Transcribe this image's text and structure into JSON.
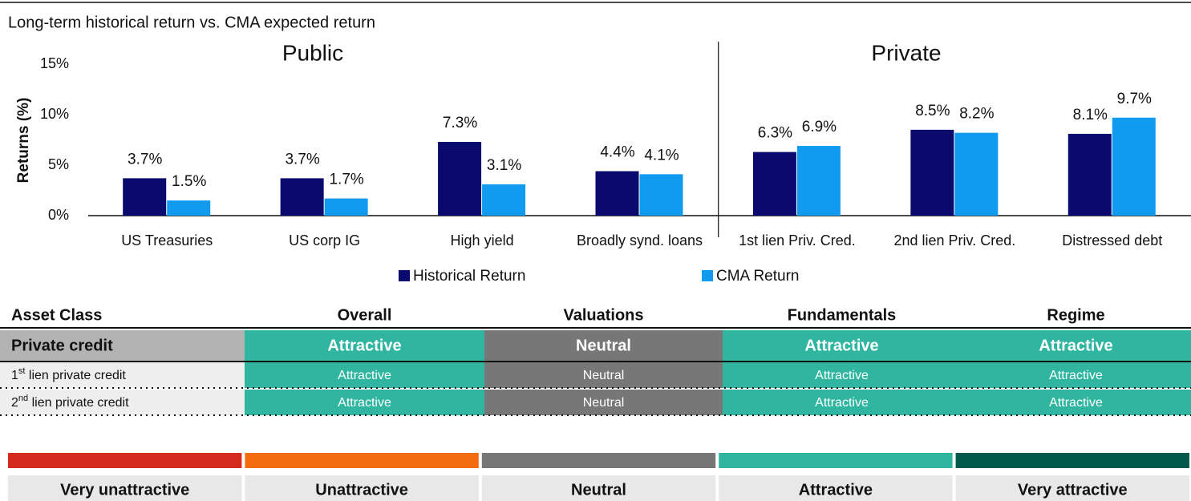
{
  "chart_data": {
    "type": "bar",
    "title": "Long-term historical return vs. CMA expected return",
    "annotations": [
      "Public",
      "Private"
    ],
    "y_label": "Returns (%)",
    "categories": [
      "US Treasuries",
      "US corp IG",
      "High yield",
      "Broadly synd. loans",
      "1st lien Priv. Cred.",
      "2nd lien Priv. Cred.",
      "Distressed debt"
    ],
    "series": [
      {
        "name": "Historical Return",
        "color": "#0a0a6e",
        "values": [
          3.7,
          3.7,
          7.3,
          4.4,
          6.3,
          8.5,
          8.1
        ],
        "value_labels": [
          "3.7%",
          "3.7%",
          "7.3%",
          "4.4%",
          "6.3%",
          "8.5%",
          "8.1%"
        ]
      },
      {
        "name": "CMA Return",
        "color": "#119bf0",
        "values": [
          1.5,
          1.7,
          3.1,
          4.1,
          6.9,
          8.2,
          9.7
        ],
        "value_labels": [
          "1.5%",
          "1.7%",
          "3.1%",
          "4.1%",
          "6.9%",
          "8.2%",
          "9.7%"
        ]
      }
    ],
    "ylim": [
      0,
      15
    ],
    "yticks": [
      {
        "value": 0,
        "label": "0%"
      },
      {
        "value": 5,
        "label": "5%"
      },
      {
        "value": 10,
        "label": "10%"
      },
      {
        "value": 15,
        "label": "15%"
      }
    ],
    "grid": false,
    "legend": "bottom"
  },
  "table": {
    "header": [
      "Asset Class",
      "Overall",
      "Valuations",
      "Fundamentals",
      "Regime"
    ],
    "rows": [
      [
        "Private credit",
        "Attractive",
        "Neutral",
        "Attractive",
        "Attractive"
      ],
      [
        {
          "ordinal": "1",
          "suffix": "st",
          "rest": " lien private credit"
        },
        "Attractive",
        "Neutral",
        "Attractive",
        "Attractive"
      ],
      [
        {
          "ordinal": "2",
          "suffix": "nd",
          "rest": " lien private credit"
        },
        "Attractive",
        "Neutral",
        "Attractive",
        "Attractive"
      ]
    ]
  },
  "scale": [
    {
      "label": "Very unattractive",
      "color": "#d52b1e"
    },
    {
      "label": "Unattractive",
      "color": "#f26b0f"
    },
    {
      "label": "Neutral",
      "color": "#777777"
    },
    {
      "label": "Attractive",
      "color": "#2fb5a0"
    },
    {
      "label": "Very attractive",
      "color": "#005a4a"
    }
  ]
}
